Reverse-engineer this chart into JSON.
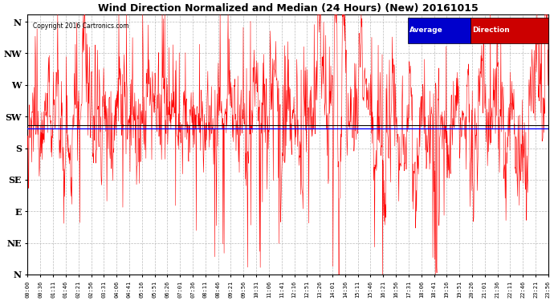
{
  "title": "Wind Direction Normalized and Median (24 Hours) (New) 20161015",
  "copyright_text": "Copyright 2016 Cartronics.com",
  "background_color": "#ffffff",
  "plot_bg_color": "#ffffff",
  "grid_color": "#aaaaaa",
  "red_line_color": "#ff0000",
  "black_line_color": "#000000",
  "blue_line_color": "#0000ff",
  "title_fontsize": 9,
  "ytick_labels": [
    "N",
    "NW",
    "W",
    "SW",
    "S",
    "SE",
    "E",
    "NE",
    "N"
  ],
  "ytick_values": [
    360,
    315,
    270,
    225,
    180,
    135,
    90,
    45,
    0
  ],
  "median_value": 213,
  "num_points": 1440,
  "legend_avg_bg": "#0000cc",
  "legend_dir_bg": "#cc0000",
  "legend_text_avg": "Average",
  "legend_text_dir": "Direction",
  "tick_labels": [
    "00:00",
    "00:36",
    "01:11",
    "01:46",
    "02:21",
    "02:56",
    "03:31",
    "04:06",
    "04:41",
    "05:16",
    "05:51",
    "06:26",
    "07:01",
    "07:36",
    "08:11",
    "08:46",
    "09:21",
    "09:56",
    "10:31",
    "11:06",
    "11:41",
    "12:16",
    "12:51",
    "13:26",
    "14:01",
    "14:36",
    "15:11",
    "15:46",
    "16:21",
    "16:56",
    "17:31",
    "18:06",
    "18:41",
    "19:16",
    "19:51",
    "20:26",
    "21:01",
    "21:36",
    "22:11",
    "22:46",
    "23:21",
    "23:56"
  ],
  "ylim_min": 0,
  "ylim_max": 370,
  "figwidth": 6.9,
  "figheight": 3.75,
  "dpi": 100
}
